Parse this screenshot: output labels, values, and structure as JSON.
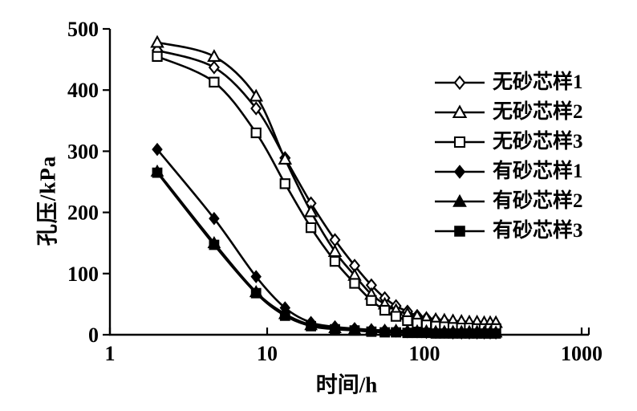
{
  "figure": {
    "background": "#ffffff",
    "ink_color": "#000000"
  },
  "chart_data": {
    "type": "line",
    "title": "",
    "xlabel": "时间/h",
    "ylabel": "孔压/kPa",
    "x_scale": "log",
    "xlim": [
      1,
      1000
    ],
    "ylim": [
      0,
      500
    ],
    "x_ticks": [
      1,
      10,
      100,
      1000
    ],
    "y_ticks": [
      0,
      100,
      200,
      300,
      400,
      500
    ],
    "grid": false,
    "legend_position": "right",
    "x": [
      2,
      4.6,
      8.5,
      13,
      19,
      27,
      36,
      46,
      56,
      66,
      78,
      90,
      103,
      118,
      134,
      152,
      172,
      193,
      216,
      240,
      262,
      285
    ],
    "series": [
      {
        "name": "无砂芯样1",
        "marker": "diamond",
        "fill": "open",
        "values": [
          465,
          437,
          370,
          289,
          215,
          155,
          113,
          81,
          60,
          47,
          38,
          31,
          27,
          24,
          22,
          20,
          19,
          18,
          17,
          17,
          16,
          16
        ]
      },
      {
        "name": "无砂芯样2",
        "marker": "triangle",
        "fill": "open",
        "values": [
          478,
          455,
          390,
          287,
          201,
          136,
          97,
          66,
          50,
          40,
          34,
          30,
          27,
          25,
          24,
          23,
          22,
          21,
          21,
          20,
          20,
          20
        ]
      },
      {
        "name": "无砂芯样3",
        "marker": "square",
        "fill": "open",
        "values": [
          455,
          413,
          330,
          247,
          175,
          120,
          84,
          56,
          40,
          30,
          23,
          19,
          16,
          14,
          13,
          12,
          11,
          11,
          10,
          10,
          10,
          10
        ]
      },
      {
        "name": "有砂芯样1",
        "marker": "diamond",
        "fill": "solid",
        "values": [
          303,
          190,
          95,
          44,
          20,
          13,
          10,
          8,
          7,
          6,
          5,
          5,
          4,
          4,
          4,
          3,
          3,
          3,
          3,
          3,
          3,
          3
        ]
      },
      {
        "name": "有砂芯样2",
        "marker": "triangle",
        "fill": "solid",
        "values": [
          267,
          150,
          70,
          34,
          16,
          11,
          9,
          8,
          7,
          7,
          6,
          6,
          6,
          5,
          5,
          5,
          5,
          5,
          5,
          4,
          4,
          4
        ]
      },
      {
        "name": "有砂芯样3",
        "marker": "square",
        "fill": "solid",
        "values": [
          265,
          147,
          68,
          31,
          14,
          9,
          7,
          5,
          4,
          4,
          3,
          3,
          3,
          2,
          2,
          2,
          2,
          2,
          2,
          2,
          2,
          2
        ]
      }
    ]
  }
}
